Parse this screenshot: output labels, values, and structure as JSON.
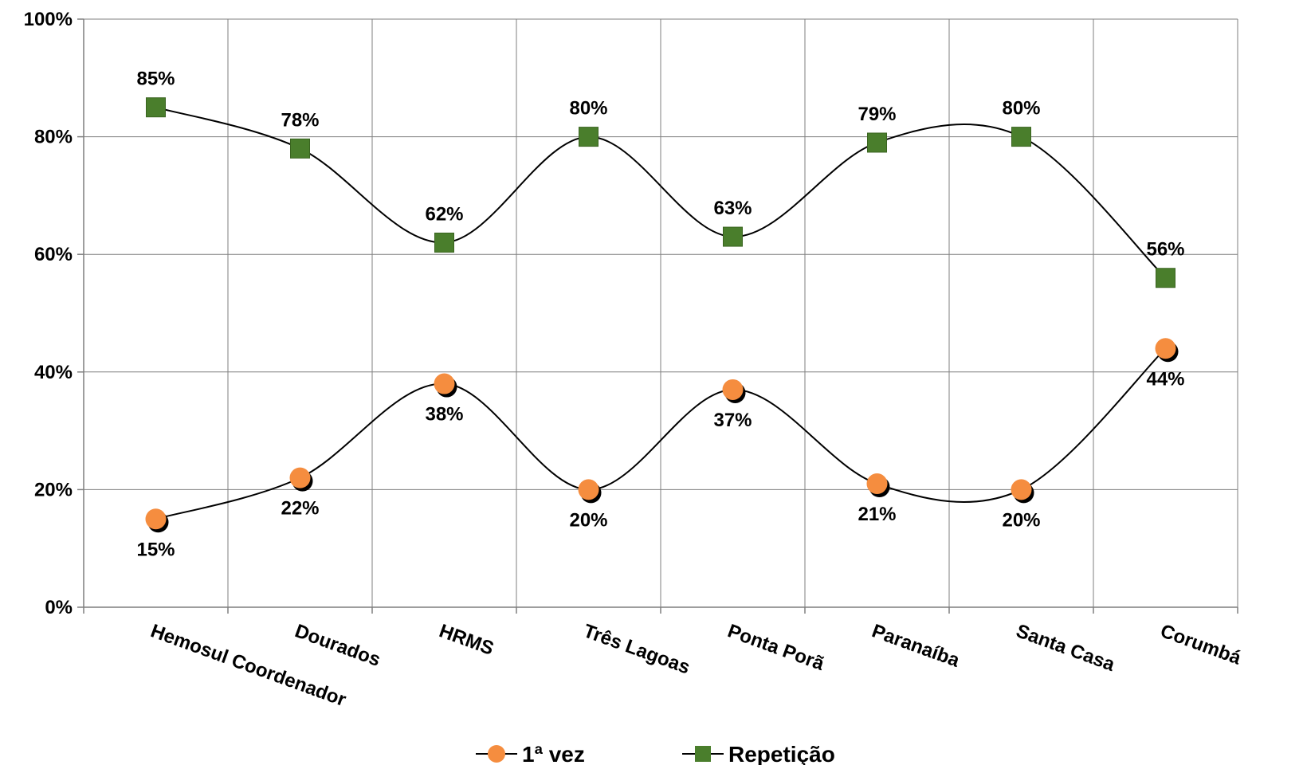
{
  "chart_data": {
    "type": "line",
    "smooth": true,
    "categories": [
      "Hemosul Coordenador",
      "Dourados",
      "HRMS",
      "Três Lagoas",
      "Ponta Porã",
      "Paranaíba",
      "Santa Casa",
      "Corumbá"
    ],
    "series": [
      {
        "name": "1ª vez",
        "values": [
          15,
          22,
          38,
          20,
          37,
          21,
          20,
          44
        ],
        "labels": [
          "15%",
          "22%",
          "38%",
          "20%",
          "37%",
          "21%",
          "20%",
          "44%"
        ],
        "label_position": "below",
        "marker": "circle",
        "color": "#f58d3f"
      },
      {
        "name": "Repetição",
        "values": [
          85,
          78,
          62,
          80,
          63,
          79,
          80,
          56
        ],
        "labels": [
          "85%",
          "78%",
          "62%",
          "80%",
          "63%",
          "79%",
          "80%",
          "56%"
        ],
        "label_position": "above",
        "marker": "square",
        "color": "#4a7e2c"
      }
    ],
    "ylim": [
      0,
      100
    ],
    "y_ticks": [
      "0%",
      "20%",
      "40%",
      "60%",
      "80%",
      "100%"
    ],
    "y_tick_values": [
      0,
      20,
      40,
      60,
      80,
      100
    ],
    "grid": true,
    "legend_position": "bottom"
  }
}
